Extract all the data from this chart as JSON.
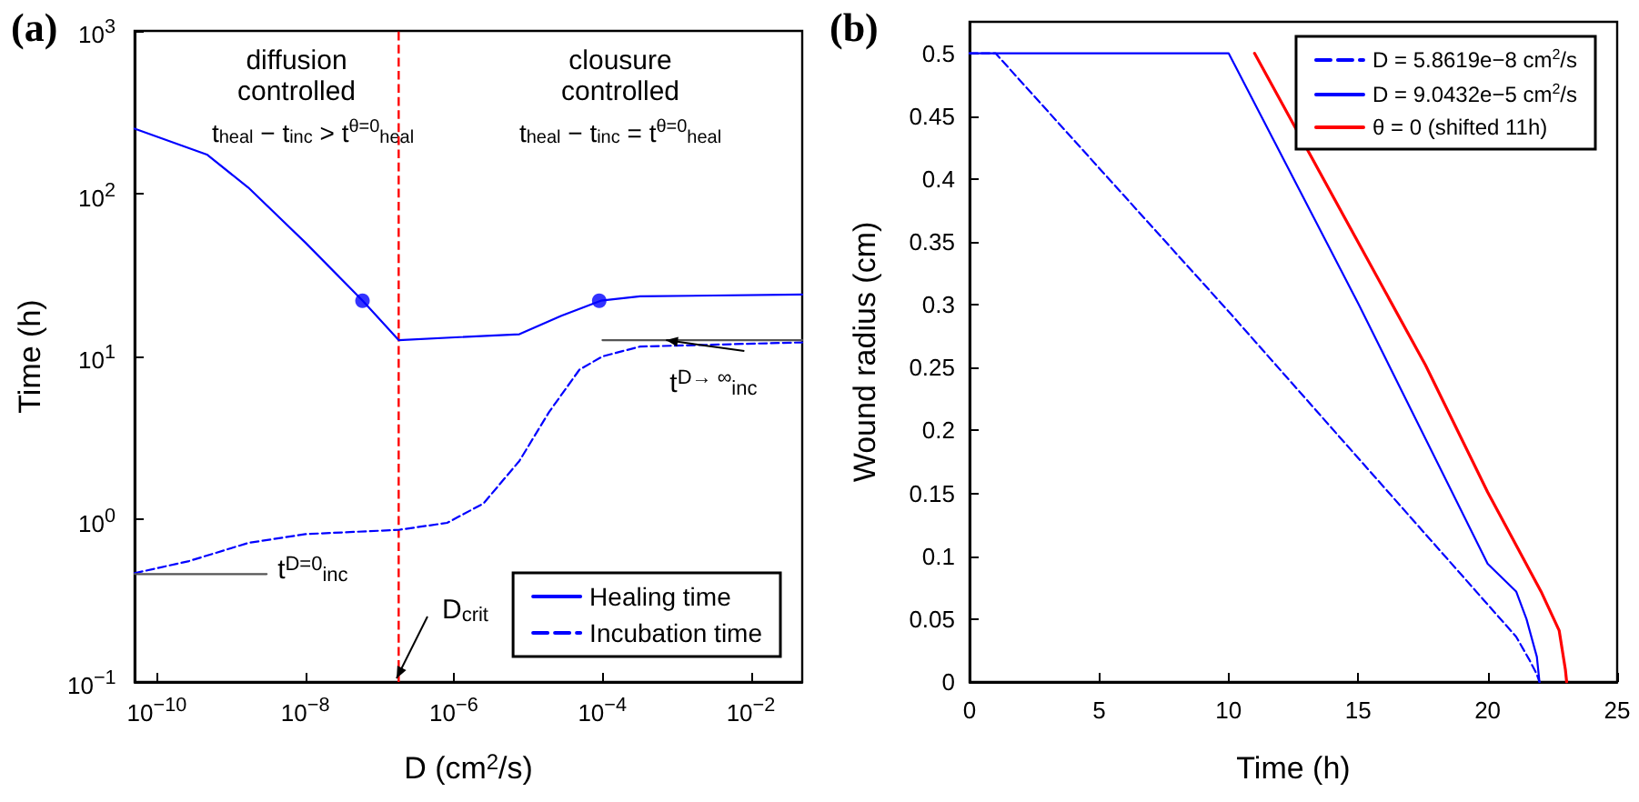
{
  "chart_data": [
    {
      "type": "line",
      "title": "(a)",
      "xlabel": "D (cm$^{2}$/s)",
      "ylabel": "Time (h)",
      "log": "xy",
      "xlim": [
        5e-11,
        0.049
      ],
      "ylim": [
        0.1,
        1000
      ],
      "xticks": [
        {
          "value": 1e-10,
          "label": "10$^{−10}$"
        },
        {
          "value": 1e-08,
          "label": "10$^{−8}$"
        },
        {
          "value": 1e-06,
          "label": "10$^{−6}$"
        },
        {
          "value": 0.0001,
          "label": "10$^{−4}$"
        },
        {
          "value": 0.01,
          "label": "10$^{−2}$"
        }
      ],
      "yticks": [
        {
          "value": 0.1,
          "label": "10$^{−1}$"
        },
        {
          "value": 1,
          "label": "10$^{0}$"
        },
        {
          "value": 10,
          "label": "10$^{1}$"
        },
        {
          "value": 100,
          "label": "10$^{2}$"
        },
        {
          "value": 1000,
          "label": "10$^{3}$"
        }
      ],
      "legend": "bottom right",
      "marker": "none",
      "line_style": "solid",
      "series": [
        {
          "name": "Healing time",
          "color": "#0000ff",
          "x": [
            5e-11,
            4.7e-10,
            1.7e-09,
            1e-08,
            5.9e-08,
            1.8e-07,
            7.6e-06,
            2.8e-05,
            9.5e-05,
            0.00032,
            0.049
          ],
          "values": [
            251,
            174,
            109,
            50,
            22,
            12.6,
            13.7,
            17.8,
            22,
            23.4,
            24
          ]
        },
        {
          "name": "Incubation time",
          "color": "#0000ff",
          "line_style": "dashed",
          "x": [
            5e-11,
            2.7e-10,
            1.7e-09,
            1e-08,
            1.8e-07,
            8.1e-07,
            2.5e-06,
            7.6e-06,
            1.9e-05,
            4.9e-05,
            0.0001,
            0.00032,
            0.049
          ],
          "values": [
            0.466,
            0.553,
            0.715,
            0.81,
            0.86,
            0.95,
            1.25,
            2.28,
            4.54,
            8.3,
            10,
            11.5,
            12.2
          ]
        },
        {
          "type": "scatter",
          "color": "#0000ff",
          "marker": "circle",
          "x": [
            5.8619e-08,
            9.0432e-05
          ],
          "values": [
            22,
            22
          ]
        },
        {
          "color": "#555555",
          "x": [
            5e-11,
            3e-09
          ],
          "values": [
            0.46,
            0.46
          ]
        },
        {
          "color": "#555555",
          "x": [
            0.0001,
            0.049
          ],
          "values": [
            12.6,
            12.6
          ]
        }
      ],
      "ref_lines": [
        {
          "axis": "x",
          "value": 1.8e-07,
          "color": "#ff0000",
          "line_style": "dashed"
        }
      ],
      "annotations": [
        "diffusion\ncontrolled",
        "t$_{heal}$ − t$_{inc}$ > t$^{θ=0}$$_{heal}$",
        "clousure\ncontrolled",
        "t$_{heal}$ − t$_{inc}$ = t$^{θ=0}$$_{heal}$",
        "D$_{crit}$",
        {
          "text": "t$^{D→ ∞}$$_{inc}$",
          "x": 0.00068,
          "y": 12.6
        },
        {
          "text": "t$^{D=0}$$_{inc}$",
          "x": 3e-09,
          "y": 0.46
        }
      ]
    },
    {
      "type": "line",
      "title": "(b)",
      "xlabel": "Time (h)",
      "ylabel": "Wound radius (cm)",
      "xlim": [
        0,
        25
      ],
      "xticks": [
        0,
        5,
        10,
        15,
        20,
        25
      ],
      "ylim": [
        0,
        0.525
      ],
      "yticks": [
        0,
        0.05,
        0.1,
        0.15,
        0.2,
        0.25,
        0.3,
        0.35,
        0.4,
        0.45,
        0.5
      ],
      "legend": "top right",
      "marker": "none",
      "line_style": "solid",
      "series": [
        {
          "name": "D = 5.8619e−8 cm$^{2}$/s",
          "color": "#0000ff",
          "line_style": "dashed",
          "x": [
            0,
            1,
            10.07,
            21.1,
            21.6,
            21.9,
            22
          ],
          "values": [
            0.5,
            0.5,
            0.293,
            0.036,
            0.018,
            0.006,
            0
          ]
        },
        {
          "name": "D = 9.0432e−5 cm$^{2}$/s",
          "color": "#0000ff",
          "x": [
            0,
            10,
            15.03,
            20,
            21.1,
            21.5,
            21.9,
            22
          ],
          "values": [
            0.5,
            0.5,
            0.3,
            0.094,
            0.072,
            0.05,
            0.02,
            0
          ]
        },
        {
          "name": "θ = 0 (shifted 11h)",
          "color": "#ff0000",
          "x": [
            11,
            17.6,
            20,
            22.06,
            22.76,
            23,
            23.05
          ],
          "values": [
            0.5,
            0.252,
            0.151,
            0.072,
            0.041,
            0.01,
            0
          ]
        }
      ]
    }
  ]
}
